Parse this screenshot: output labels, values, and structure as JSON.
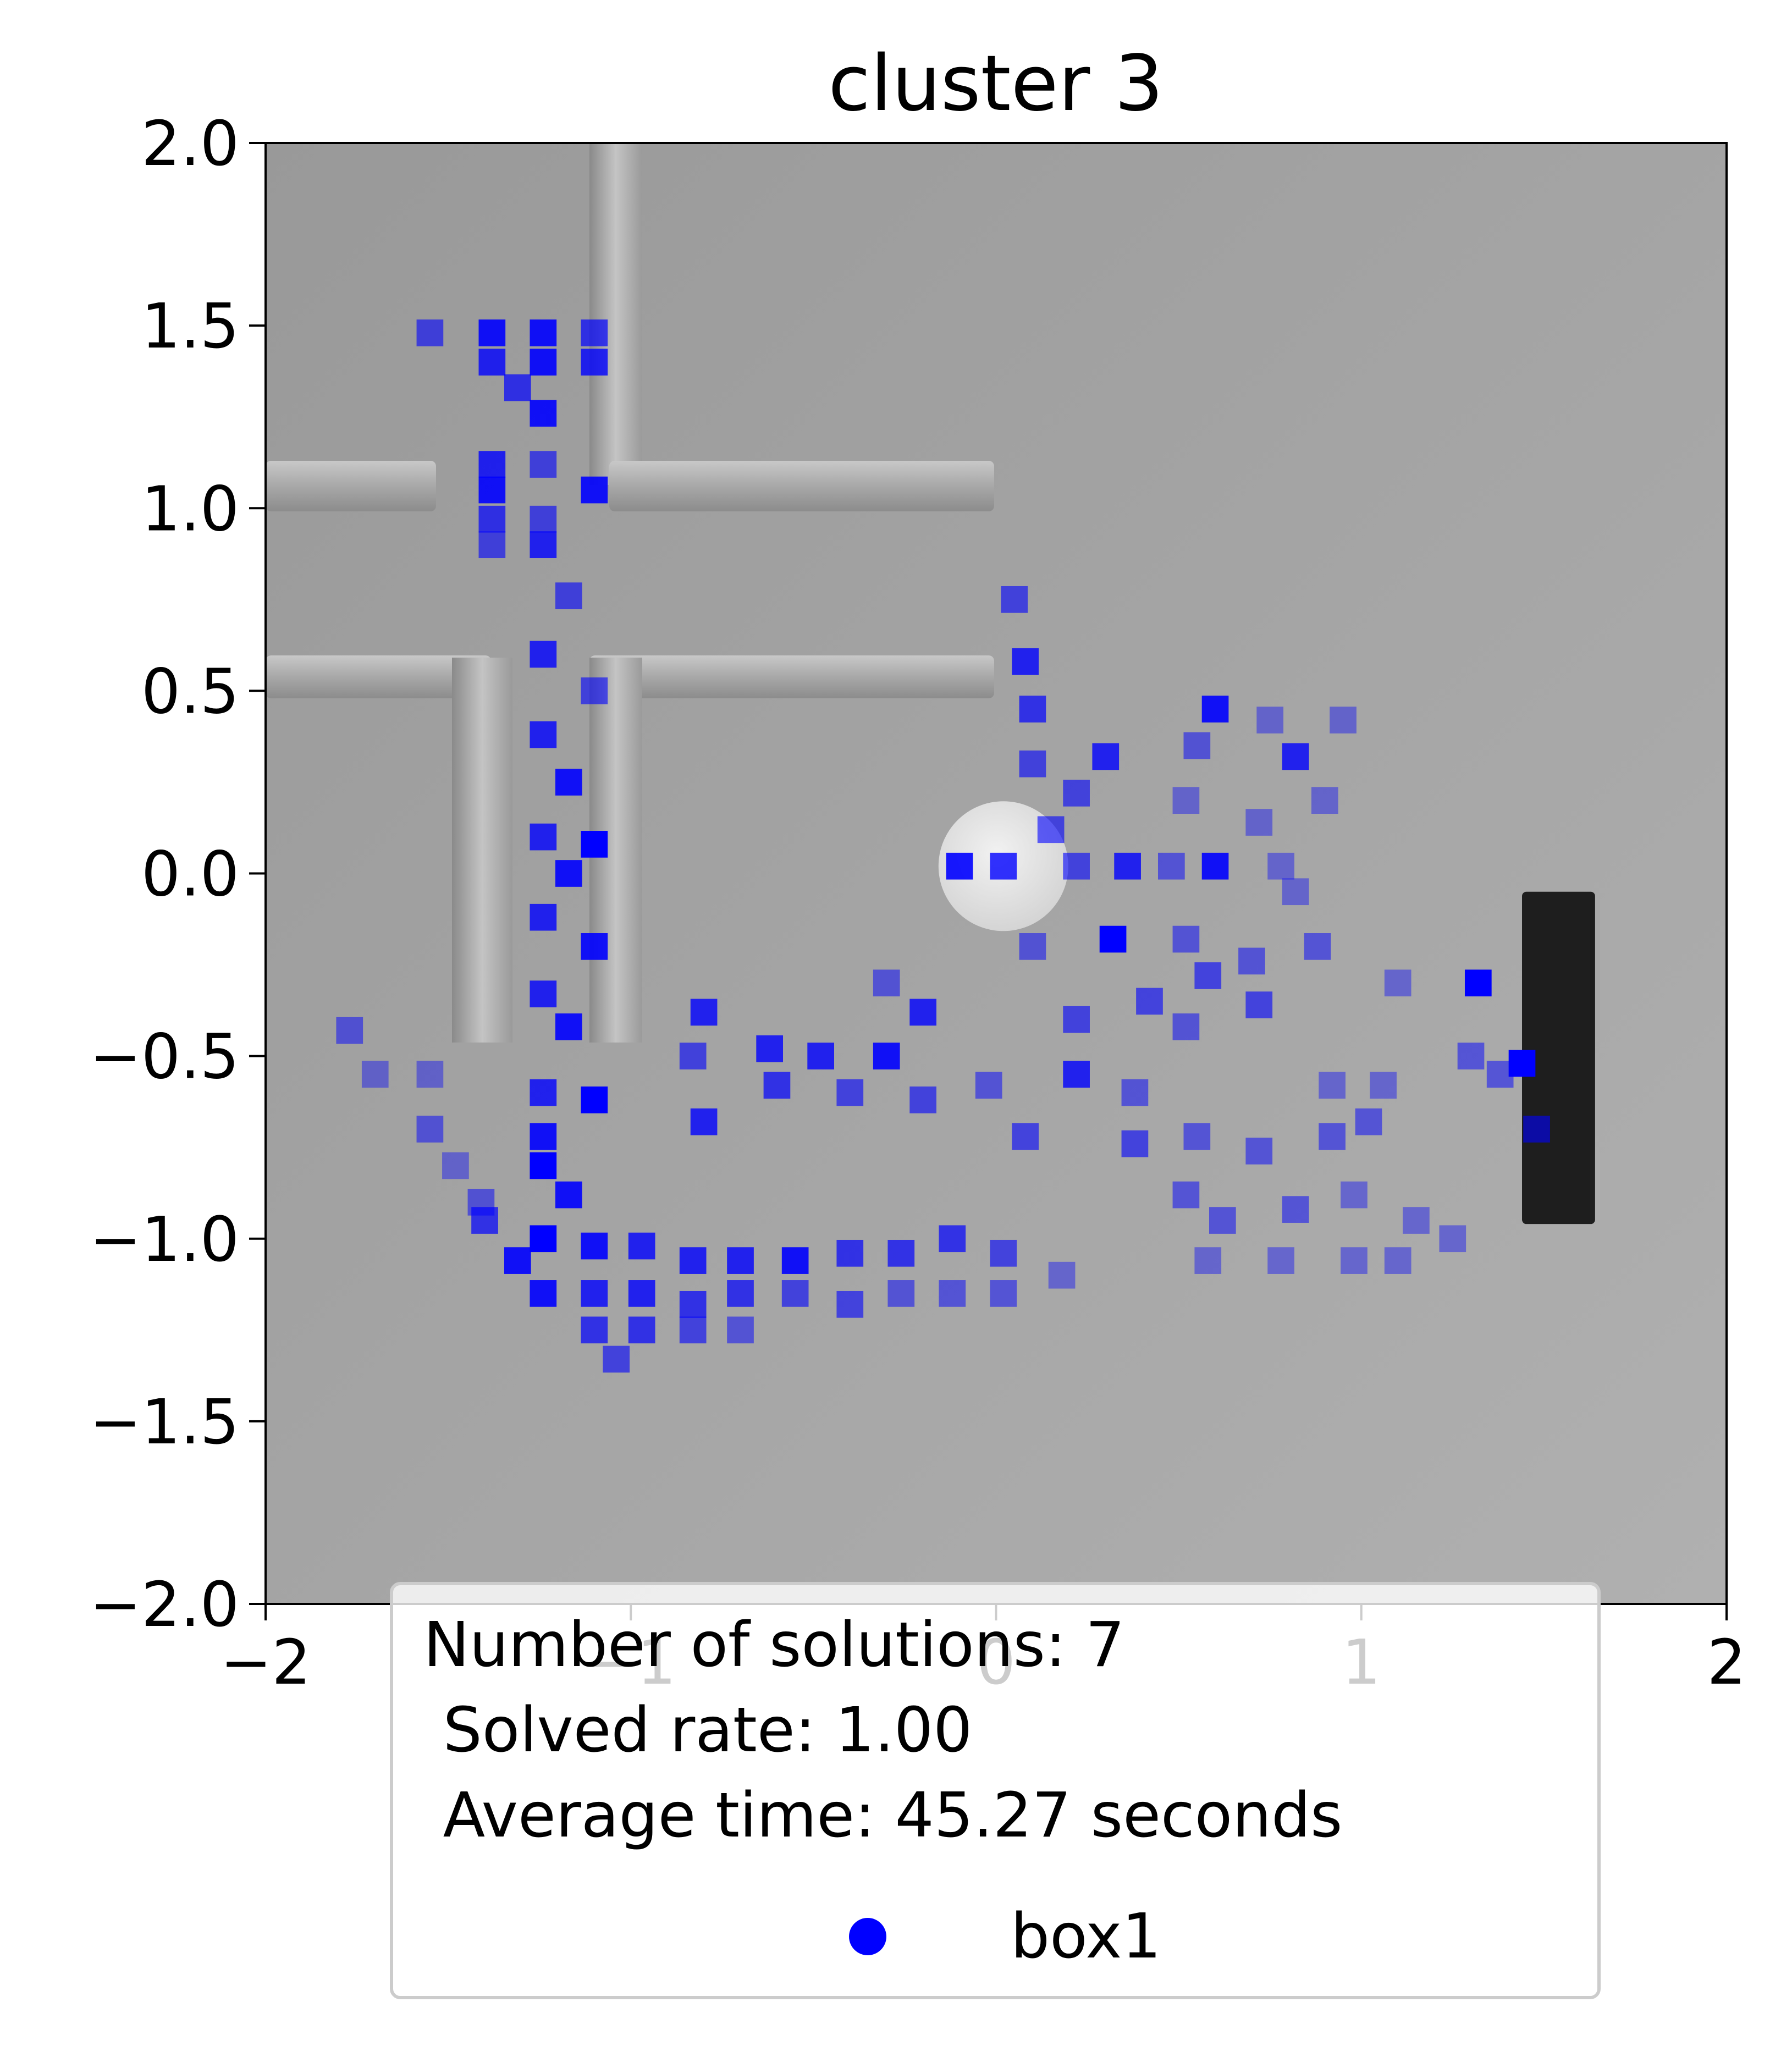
{
  "chart_data": {
    "type": "heatmap",
    "title": "cluster 3",
    "xlim": [
      -2,
      2
    ],
    "ylim": [
      -2,
      2
    ],
    "xticks": [
      -2,
      -1,
      0,
      1,
      2
    ],
    "xtick_labels": [
      "−2",
      "−1",
      "0",
      "1",
      "2"
    ],
    "yticks": [
      2.0,
      1.5,
      1.0,
      0.5,
      0.0,
      -0.5,
      -1.0,
      -1.5,
      -2.0
    ],
    "ytick_labels": [
      "2.0",
      "1.5",
      "1.0",
      "0.5",
      "0.0",
      "−0.5",
      "−1.0",
      "−1.5",
      "−2.0"
    ],
    "grid": false,
    "legend": {
      "placement": "lower center",
      "lines": [
        "Number of solutions: 7",
        " Solved rate: 1.00",
        " Average time: 45.27 seconds"
      ],
      "series_label": "box1",
      "marker_color": "#0000ff"
    },
    "series": [
      {
        "name": "box1",
        "color": "#0000ff",
        "cell_size": 0.0733,
        "cells": [
          [
            -1.55,
            1.48,
            0.6
          ],
          [
            -1.38,
            1.48,
            0.9
          ],
          [
            -1.24,
            1.48,
            0.9
          ],
          [
            -1.1,
            1.48,
            0.7
          ],
          [
            -1.38,
            1.4,
            0.8
          ],
          [
            -1.24,
            1.4,
            0.9
          ],
          [
            -1.1,
            1.4,
            0.8
          ],
          [
            -1.31,
            1.33,
            0.7
          ],
          [
            -1.24,
            1.26,
            0.9
          ],
          [
            -1.38,
            1.12,
            0.8
          ],
          [
            -1.24,
            1.12,
            0.6
          ],
          [
            -1.38,
            1.05,
            0.9
          ],
          [
            -1.1,
            1.05,
            0.9
          ],
          [
            -1.38,
            0.97,
            0.7
          ],
          [
            -1.24,
            0.97,
            0.6
          ],
          [
            -1.38,
            0.9,
            0.6
          ],
          [
            -1.24,
            0.9,
            0.8
          ],
          [
            -1.17,
            0.76,
            0.6
          ],
          [
            -1.24,
            0.6,
            0.8
          ],
          [
            -1.1,
            0.5,
            0.6
          ],
          [
            -1.24,
            0.38,
            0.8
          ],
          [
            -1.17,
            0.25,
            0.9
          ],
          [
            -1.24,
            0.1,
            0.8
          ],
          [
            -1.1,
            0.08,
            1.0
          ],
          [
            -1.17,
            0.0,
            0.9
          ],
          [
            -1.24,
            -0.12,
            0.8
          ],
          [
            -1.1,
            -0.2,
            0.9
          ],
          [
            -1.24,
            -0.33,
            0.8
          ],
          [
            -1.17,
            -0.42,
            0.9
          ],
          [
            -1.24,
            -0.6,
            0.8
          ],
          [
            -1.1,
            -0.62,
            1.0
          ],
          [
            -1.24,
            -0.72,
            0.9
          ],
          [
            -1.24,
            -0.8,
            1.0
          ],
          [
            -1.17,
            -0.88,
            0.9
          ],
          [
            -1.4,
            -0.95,
            0.7
          ],
          [
            -1.24,
            -1.0,
            1.0
          ],
          [
            -1.1,
            -1.02,
            0.9
          ],
          [
            -1.31,
            -1.06,
            0.9
          ],
          [
            -0.97,
            -1.02,
            0.8
          ],
          [
            -0.83,
            -1.06,
            0.8
          ],
          [
            -0.7,
            -1.06,
            0.8
          ],
          [
            -0.55,
            -1.06,
            0.9
          ],
          [
            -0.4,
            -1.04,
            0.7
          ],
          [
            -0.26,
            -1.04,
            0.7
          ],
          [
            -0.12,
            -1.0,
            0.7
          ],
          [
            0.02,
            -1.04,
            0.6
          ],
          [
            -1.24,
            -1.15,
            0.9
          ],
          [
            -1.1,
            -1.15,
            0.8
          ],
          [
            -0.97,
            -1.15,
            0.8
          ],
          [
            -0.83,
            -1.18,
            0.7
          ],
          [
            -0.7,
            -1.15,
            0.7
          ],
          [
            -0.55,
            -1.15,
            0.6
          ],
          [
            -0.4,
            -1.18,
            0.6
          ],
          [
            -0.26,
            -1.15,
            0.5
          ],
          [
            -0.12,
            -1.15,
            0.5
          ],
          [
            0.02,
            -1.15,
            0.5
          ],
          [
            0.18,
            -1.1,
            0.4
          ],
          [
            -1.1,
            -1.25,
            0.7
          ],
          [
            -0.97,
            -1.25,
            0.7
          ],
          [
            -0.83,
            -1.25,
            0.6
          ],
          [
            -0.7,
            -1.25,
            0.5
          ],
          [
            -1.04,
            -1.33,
            0.6
          ],
          [
            -1.77,
            -0.43,
            0.5
          ],
          [
            -1.7,
            -0.55,
            0.4
          ],
          [
            -1.55,
            -0.55,
            0.4
          ],
          [
            -1.55,
            -0.7,
            0.5
          ],
          [
            -1.48,
            -0.8,
            0.4
          ],
          [
            -1.41,
            -0.9,
            0.5
          ],
          [
            -0.8,
            -0.38,
            0.8
          ],
          [
            -0.83,
            -0.5,
            0.6
          ],
          [
            -0.62,
            -0.48,
            0.8
          ],
          [
            -0.48,
            -0.5,
            0.8
          ],
          [
            -0.3,
            -0.5,
            0.9
          ],
          [
            -0.8,
            -0.68,
            0.8
          ],
          [
            -0.6,
            -0.58,
            0.7
          ],
          [
            -0.4,
            -0.6,
            0.6
          ],
          [
            -0.2,
            -0.62,
            0.6
          ],
          [
            -0.02,
            -0.58,
            0.5
          ],
          [
            0.08,
            -0.72,
            0.6
          ],
          [
            0.22,
            -0.55,
            0.8
          ],
          [
            0.38,
            -0.6,
            0.5
          ],
          [
            -0.2,
            -0.38,
            0.8
          ],
          [
            -0.3,
            -0.3,
            0.5
          ],
          [
            0.1,
            -0.2,
            0.5
          ],
          [
            0.05,
            0.75,
            0.6
          ],
          [
            0.08,
            0.58,
            0.8
          ],
          [
            0.1,
            0.45,
            0.7
          ],
          [
            0.1,
            0.3,
            0.6
          ],
          [
            0.3,
            0.32,
            0.8
          ],
          [
            0.22,
            0.22,
            0.6
          ],
          [
            0.15,
            0.12,
            0.6
          ],
          [
            0.6,
            0.45,
            0.9
          ],
          [
            0.55,
            0.35,
            0.5
          ],
          [
            0.75,
            0.42,
            0.4
          ],
          [
            0.82,
            0.32,
            0.8
          ],
          [
            0.95,
            0.42,
            0.4
          ],
          [
            0.9,
            0.2,
            0.4
          ],
          [
            0.52,
            0.2,
            0.4
          ],
          [
            0.72,
            0.14,
            0.4
          ],
          [
            -0.1,
            0.02,
            0.9
          ],
          [
            0.02,
            0.02,
            0.8
          ],
          [
            0.36,
            0.02,
            0.8
          ],
          [
            0.6,
            0.02,
            0.9
          ],
          [
            0.22,
            0.02,
            0.6
          ],
          [
            0.48,
            0.02,
            0.5
          ],
          [
            0.78,
            0.02,
            0.4
          ],
          [
            0.82,
            -0.05,
            0.4
          ],
          [
            0.32,
            -0.18,
            1.0
          ],
          [
            0.52,
            -0.18,
            0.5
          ],
          [
            0.7,
            -0.24,
            0.5
          ],
          [
            0.58,
            -0.28,
            0.6
          ],
          [
            0.42,
            -0.35,
            0.6
          ],
          [
            0.22,
            -0.4,
            0.6
          ],
          [
            0.52,
            -0.42,
            0.5
          ],
          [
            0.72,
            -0.36,
            0.6
          ],
          [
            0.88,
            -0.2,
            0.5
          ],
          [
            0.38,
            -0.74,
            0.6
          ],
          [
            0.55,
            -0.72,
            0.5
          ],
          [
            0.72,
            -0.76,
            0.5
          ],
          [
            0.92,
            -0.72,
            0.5
          ],
          [
            1.02,
            -0.68,
            0.5
          ],
          [
            1.06,
            -0.58,
            0.4
          ],
          [
            0.92,
            -0.58,
            0.4
          ],
          [
            1.3,
            -0.5,
            0.5
          ],
          [
            1.38,
            -0.55,
            0.5
          ],
          [
            1.32,
            -0.3,
            1.0
          ],
          [
            1.1,
            -0.3,
            0.4
          ],
          [
            1.44,
            -0.52,
            1.0
          ],
          [
            1.48,
            -0.7,
            0.6
          ],
          [
            0.52,
            -0.88,
            0.5
          ],
          [
            0.62,
            -0.95,
            0.5
          ],
          [
            0.82,
            -0.92,
            0.5
          ],
          [
            0.98,
            -0.88,
            0.4
          ],
          [
            1.15,
            -0.95,
            0.4
          ],
          [
            1.25,
            -1.0,
            0.4
          ],
          [
            0.58,
            -1.06,
            0.4
          ],
          [
            0.78,
            -1.06,
            0.4
          ],
          [
            0.98,
            -1.06,
            0.4
          ],
          [
            1.1,
            -1.06,
            0.4
          ]
        ]
      }
    ],
    "scene": {
      "robot_position": [
        0.02,
        0.02
      ],
      "goal_object": {
        "x": [
          1.44,
          1.64
        ],
        "y": [
          -0.96,
          -0.05
        ]
      }
    }
  }
}
